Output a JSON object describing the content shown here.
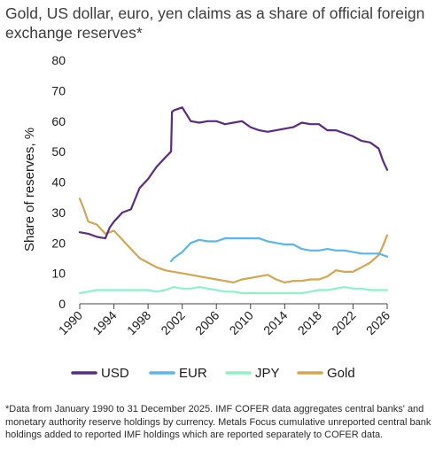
{
  "page": {
    "title": "Gold, US dollar, euro, yen claims as a share of official foreign exchange reserves*",
    "footnote": "*Data from January 1990 to 31 December 2025. IMF COFER data aggregates central banks' and monetary authority reserve holdings by currency. Metals Focus cumulative unreported central bank holdings added to reported IMF holdings which are reported separately to COFER data."
  },
  "chart_data": {
    "type": "line",
    "ylabel": "Share of reserves, %",
    "xlabel": "",
    "xlim": [
      1990,
      2026
    ],
    "ylim": [
      0,
      80
    ],
    "xticks": [
      "1990",
      "1994",
      "1998",
      "2002",
      "2006",
      "2010",
      "2014",
      "2018",
      "2022",
      "2026"
    ],
    "yticks": [
      "0",
      "10",
      "20",
      "30",
      "40",
      "50",
      "60",
      "70",
      "80"
    ],
    "grid": false,
    "legend": "bottom",
    "series": [
      {
        "name": "USD",
        "color": "#5b2a86",
        "x": [
          1990,
          1991,
          1992,
          1993,
          1993.5,
          1994,
          1995,
          1996,
          1997,
          1998,
          1999,
          2000,
          2000.7,
          2000.8,
          2001,
          2002,
          2003,
          2004,
          2005,
          2006,
          2007,
          2008,
          2009,
          2010,
          2011,
          2012,
          2013,
          2014,
          2015,
          2016,
          2017,
          2018,
          2019,
          2020,
          2021,
          2022,
          2023,
          2024,
          2025,
          2025.5,
          2026
        ],
        "y": [
          23.5,
          23,
          22,
          21.5,
          25,
          27,
          30,
          31,
          38,
          41,
          45,
          48,
          50,
          63,
          63.5,
          64.5,
          60,
          59.5,
          60,
          60,
          59,
          59.5,
          60,
          58,
          57,
          56.5,
          57,
          57.5,
          58,
          59.5,
          59,
          59,
          57,
          57,
          56,
          55,
          53.5,
          53,
          51,
          47,
          44
        ]
      },
      {
        "name": "EUR",
        "color": "#5bb6ea",
        "x": [
          2000.7,
          2001,
          2002,
          2003,
          2004,
          2005,
          2006,
          2007,
          2008,
          2009,
          2010,
          2011,
          2012,
          2013,
          2014,
          2015,
          2016,
          2017,
          2018,
          2019,
          2020,
          2021,
          2022,
          2023,
          2024,
          2025,
          2026
        ],
        "y": [
          14,
          15,
          17,
          20,
          21,
          20.5,
          20.5,
          21.5,
          21.5,
          21.5,
          21.5,
          21.5,
          20.5,
          20,
          19.5,
          19.5,
          18,
          17.5,
          17.5,
          18,
          17.5,
          17.5,
          17,
          16.5,
          16.5,
          16.5,
          15.5
        ]
      },
      {
        "name": "JPY",
        "color": "#8ef2c6",
        "x": [
          1990,
          1991,
          1992,
          1993,
          1994,
          1995,
          1996,
          1997,
          1998,
          1999,
          2000,
          2001,
          2002,
          2003,
          2004,
          2005,
          2006,
          2007,
          2008,
          2009,
          2010,
          2011,
          2012,
          2013,
          2014,
          2015,
          2016,
          2017,
          2018,
          2019,
          2020,
          2021,
          2022,
          2023,
          2024,
          2025,
          2026
        ],
        "y": [
          3.5,
          4,
          4.5,
          4.5,
          4.5,
          4.5,
          4.5,
          4.5,
          4.5,
          4,
          4.5,
          5.5,
          5,
          5,
          5.5,
          5,
          4.5,
          4,
          4,
          3.5,
          3.5,
          3.5,
          3.5,
          3.5,
          3.5,
          3.5,
          3.5,
          4,
          4.5,
          4.5,
          5,
          5.5,
          5,
          5,
          4.5,
          4.5,
          4.5
        ]
      },
      {
        "name": "Gold",
        "color": "#d5a552",
        "x": [
          1990,
          1990.5,
          1991,
          1992,
          1993,
          1994,
          1995,
          1996,
          1997,
          1998,
          1999,
          2000,
          2001,
          2002,
          2003,
          2004,
          2005,
          2006,
          2007,
          2008,
          2009,
          2010,
          2011,
          2012,
          2013,
          2014,
          2015,
          2016,
          2017,
          2018,
          2019,
          2020,
          2021,
          2022,
          2023,
          2024,
          2025,
          2025.5,
          2026
        ],
        "y": [
          34.5,
          31,
          27,
          26,
          23,
          24,
          21,
          18,
          15,
          13.5,
          12,
          11,
          10.5,
          10,
          9.5,
          9,
          8.5,
          8,
          7.5,
          7,
          8,
          8.5,
          9,
          9.5,
          8,
          7,
          7.5,
          7.5,
          8,
          8,
          9,
          11,
          10.5,
          10.5,
          12,
          13.5,
          16,
          19,
          22.5
        ]
      }
    ]
  }
}
